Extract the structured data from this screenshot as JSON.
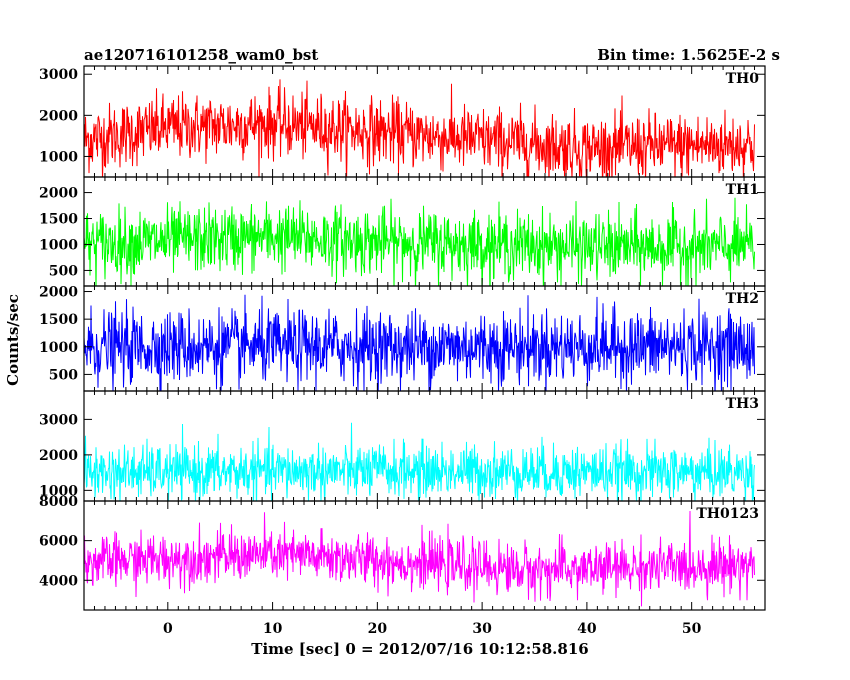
{
  "header": {
    "title": "ae120716101258_wam0_bst",
    "bin_time": "Bin time: 1.5625E-2 s"
  },
  "chart_data": {
    "type": "line",
    "title": "ae120716101258_wam0_bst",
    "xlabel": "Time [sec] 0 = 2012/07/16 10:12:58.816",
    "ylabel": "Counts/sec",
    "xlim": [
      -8,
      57
    ],
    "x_ticks": [
      0,
      10,
      20,
      30,
      40,
      50
    ],
    "grid": false,
    "panels": [
      {
        "name": "TH0",
        "color": "#ff0000",
        "ylim": [
          500,
          3200
        ],
        "y_ticks": [
          1000,
          2000,
          3000
        ],
        "x_range": [
          -8,
          56
        ],
        "mean_profile": [
          {
            "x": -8,
            "y": 1400
          },
          {
            "x": 0,
            "y": 1700
          },
          {
            "x": 10,
            "y": 1800
          },
          {
            "x": 20,
            "y": 1600
          },
          {
            "x": 30,
            "y": 1400
          },
          {
            "x": 40,
            "y": 1200
          },
          {
            "x": 56,
            "y": 1300
          }
        ],
        "spread": 400
      },
      {
        "name": "TH1",
        "color": "#00ff00",
        "ylim": [
          200,
          2300
        ],
        "y_ticks": [
          500,
          1000,
          1500,
          2000
        ],
        "x_range": [
          -8,
          56
        ],
        "mean_profile": [
          {
            "x": -8,
            "y": 1000
          },
          {
            "x": 10,
            "y": 1150
          },
          {
            "x": 20,
            "y": 1050
          },
          {
            "x": 40,
            "y": 950
          },
          {
            "x": 56,
            "y": 950
          }
        ],
        "spread": 320
      },
      {
        "name": "TH2",
        "color": "#0000ff",
        "ylim": [
          200,
          2100
        ],
        "y_ticks": [
          500,
          1000,
          1500,
          2000
        ],
        "x_range": [
          -8,
          56
        ],
        "mean_profile": [
          {
            "x": -8,
            "y": 1000
          },
          {
            "x": 20,
            "y": 1000
          },
          {
            "x": 56,
            "y": 1000
          }
        ],
        "spread": 330
      },
      {
        "name": "TH3",
        "color": "#00ffff",
        "ylim": [
          700,
          3800
        ],
        "y_ticks": [
          1000,
          2000,
          3000
        ],
        "x_range": [
          -8,
          56
        ],
        "mean_profile": [
          {
            "x": -8,
            "y": 1500
          },
          {
            "x": 20,
            "y": 1550
          },
          {
            "x": 56,
            "y": 1500
          }
        ],
        "spread": 380
      },
      {
        "name": "TH0123",
        "color": "#ff00ff",
        "ylim": [
          2500,
          8000
        ],
        "y_ticks": [
          4000,
          6000,
          8000
        ],
        "x_range": [
          -8,
          56
        ],
        "mean_profile": [
          {
            "x": -8,
            "y": 4900
          },
          {
            "x": 10,
            "y": 5300
          },
          {
            "x": 20,
            "y": 5000
          },
          {
            "x": 35,
            "y": 4500
          },
          {
            "x": 56,
            "y": 4800
          }
        ],
        "spread": 650
      }
    ]
  }
}
